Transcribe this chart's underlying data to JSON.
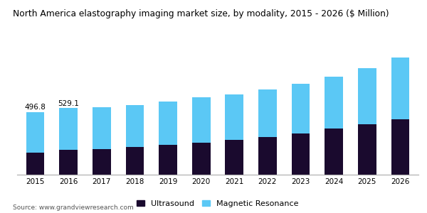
{
  "title": "North America elastography imaging market size, by modality, 2015 - 2026 ($ Million)",
  "years": [
    2015,
    2016,
    2017,
    2018,
    2019,
    2020,
    2021,
    2022,
    2023,
    2024,
    2025,
    2026
  ],
  "ultrasound": [
    175,
    195,
    205,
    220,
    235,
    255,
    275,
    300,
    330,
    365,
    400,
    440
  ],
  "magnetic_resonance": [
    322,
    334,
    330,
    335,
    345,
    360,
    365,
    375,
    390,
    415,
    445,
    490
  ],
  "annotations": {
    "2015": "496.8",
    "2016": "529.1"
  },
  "color_ultrasound": "#1a0a2e",
  "color_mr": "#5bc8f5",
  "legend_ultrasound": "Ultrasound",
  "legend_mr": "Magnetic Resonance",
  "source_text": "Source: www.grandviewresearch.com",
  "bar_width": 0.55,
  "background_color": "#ffffff",
  "header_bg": "#5c3080",
  "ylim": [
    0,
    1050
  ]
}
